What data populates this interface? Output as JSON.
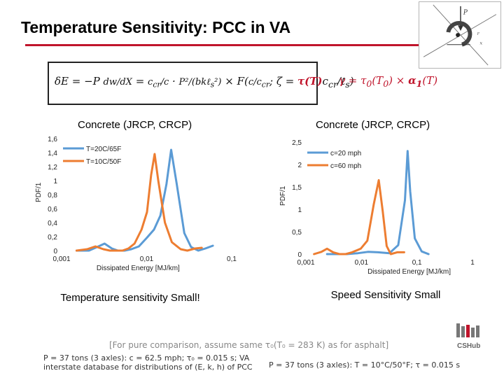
{
  "slide": {
    "title": "Temperature Sensitivity: PCC in VA",
    "equation_main": "δE = −P dw/dX = c_cr/c · P²/(bkℓ_s²) · F(c/c_cr; ζ = τ(T)c_cr/ℓ_s)",
    "equation_side": "γ = τ₀(T₀) × α₁(T)",
    "caption_left": "Temperature sensitivity Small!",
    "caption_right": "Speed Sensitivity Small",
    "footnote_main": "[For pure comparison, assume same τ₀(T₀ = 283 K) as for asphalt]",
    "footnote_left_1": "P = 37 tons (3 axles): c = 62.5 mph; τ₀ = 0.015 s; VA",
    "footnote_left_2": "interstate database for distributions of (E, k, h) of PCC",
    "footnote_right": "P = 37 tons (3 axles): T = 10°C/50°F; τ = 0.015 s",
    "logo_text": "CSHub"
  },
  "colors": {
    "accent_red": "#c0142b",
    "series_blue": "#5b9bd5",
    "series_orange": "#ed7d31"
  },
  "chart_data": [
    {
      "type": "line",
      "title": "Concrete (JRCP, CRCP)",
      "xlabel": "Dissipated Energy [MJ/km]",
      "ylabel": "PDF/1",
      "xscale": "log",
      "xlim": [
        0.001,
        0.1
      ],
      "ylim": [
        0,
        1.6
      ],
      "x_ticks": [
        "0,001",
        "0,01",
        "0,1"
      ],
      "y_ticks": [
        "0",
        "0,2",
        "0,4",
        "0,6",
        "0,8",
        "1",
        "1,2",
        "1,4",
        "1,6"
      ],
      "grid": false,
      "legend": "top-left",
      "series": [
        {
          "name": "T=20C/65F",
          "color": "#5b9bd5",
          "x": [
            0.0015,
            0.0021,
            0.0026,
            0.0032,
            0.0039,
            0.0046,
            0.0055,
            0.0066,
            0.0081,
            0.01,
            0.0122,
            0.0145,
            0.0171,
            0.0194,
            0.0226,
            0.0277,
            0.0333,
            0.0406,
            0.0489,
            0.0601
          ],
          "y": [
            0.0,
            0.0,
            0.05,
            0.1,
            0.03,
            0.0,
            0.0,
            0.02,
            0.06,
            0.18,
            0.3,
            0.5,
            0.95,
            1.44,
            0.95,
            0.25,
            0.05,
            0.0,
            0.03,
            0.07
          ]
        },
        {
          "name": "T=10C/50F",
          "color": "#ed7d31",
          "x": [
            0.0015,
            0.002,
            0.0025,
            0.0031,
            0.0037,
            0.0044,
            0.0052,
            0.0061,
            0.0072,
            0.0087,
            0.0101,
            0.0113,
            0.0124,
            0.0137,
            0.0164,
            0.0198,
            0.0251,
            0.0301,
            0.0371,
            0.0444
          ],
          "y": [
            0.0,
            0.02,
            0.06,
            0.02,
            0.0,
            0.0,
            0.0,
            0.03,
            0.1,
            0.3,
            0.55,
            1.08,
            1.38,
            1.0,
            0.4,
            0.12,
            0.02,
            0.0,
            0.03,
            0.04
          ]
        }
      ]
    },
    {
      "type": "line",
      "title": "Concrete (JRCP, CRCP)",
      "xlabel": "Dissipated Energy [MJ/km]",
      "ylabel": "PDF/1",
      "xscale": "log",
      "xlim": [
        0.001,
        1
      ],
      "ylim": [
        0,
        2.5
      ],
      "x_ticks": [
        "0,001",
        "0,01",
        "0,1",
        "1"
      ],
      "y_ticks": [
        "0",
        "0,5",
        "1",
        "1,5",
        "2",
        "2,5"
      ],
      "grid": false,
      "legend": "top-right",
      "series": [
        {
          "name": "c=20 mph",
          "color": "#5b9bd5",
          "x": [
            0.0024,
            0.0037,
            0.0055,
            0.0087,
            0.0131,
            0.0198,
            0.0319,
            0.046,
            0.0608,
            0.0678,
            0.0756,
            0.0914,
            0.1215,
            0.1615
          ],
          "y": [
            0.0,
            0.0,
            0.0,
            0.02,
            0.05,
            0.04,
            0.02,
            0.2,
            1.2,
            2.3,
            1.4,
            0.35,
            0.06,
            0.0
          ]
        },
        {
          "name": "c=60 mph",
          "color": "#ed7d31",
          "x": [
            0.0014,
            0.0019,
            0.0024,
            0.0031,
            0.004,
            0.0052,
            0.0068,
            0.0097,
            0.0128,
            0.0166,
            0.0205,
            0.0242,
            0.0285,
            0.0337,
            0.044,
            0.0588
          ],
          "y": [
            0.0,
            0.05,
            0.12,
            0.04,
            0.0,
            0.0,
            0.04,
            0.12,
            0.3,
            1.1,
            1.65,
            0.95,
            0.18,
            0.0,
            0.04,
            0.04
          ]
        }
      ]
    }
  ]
}
